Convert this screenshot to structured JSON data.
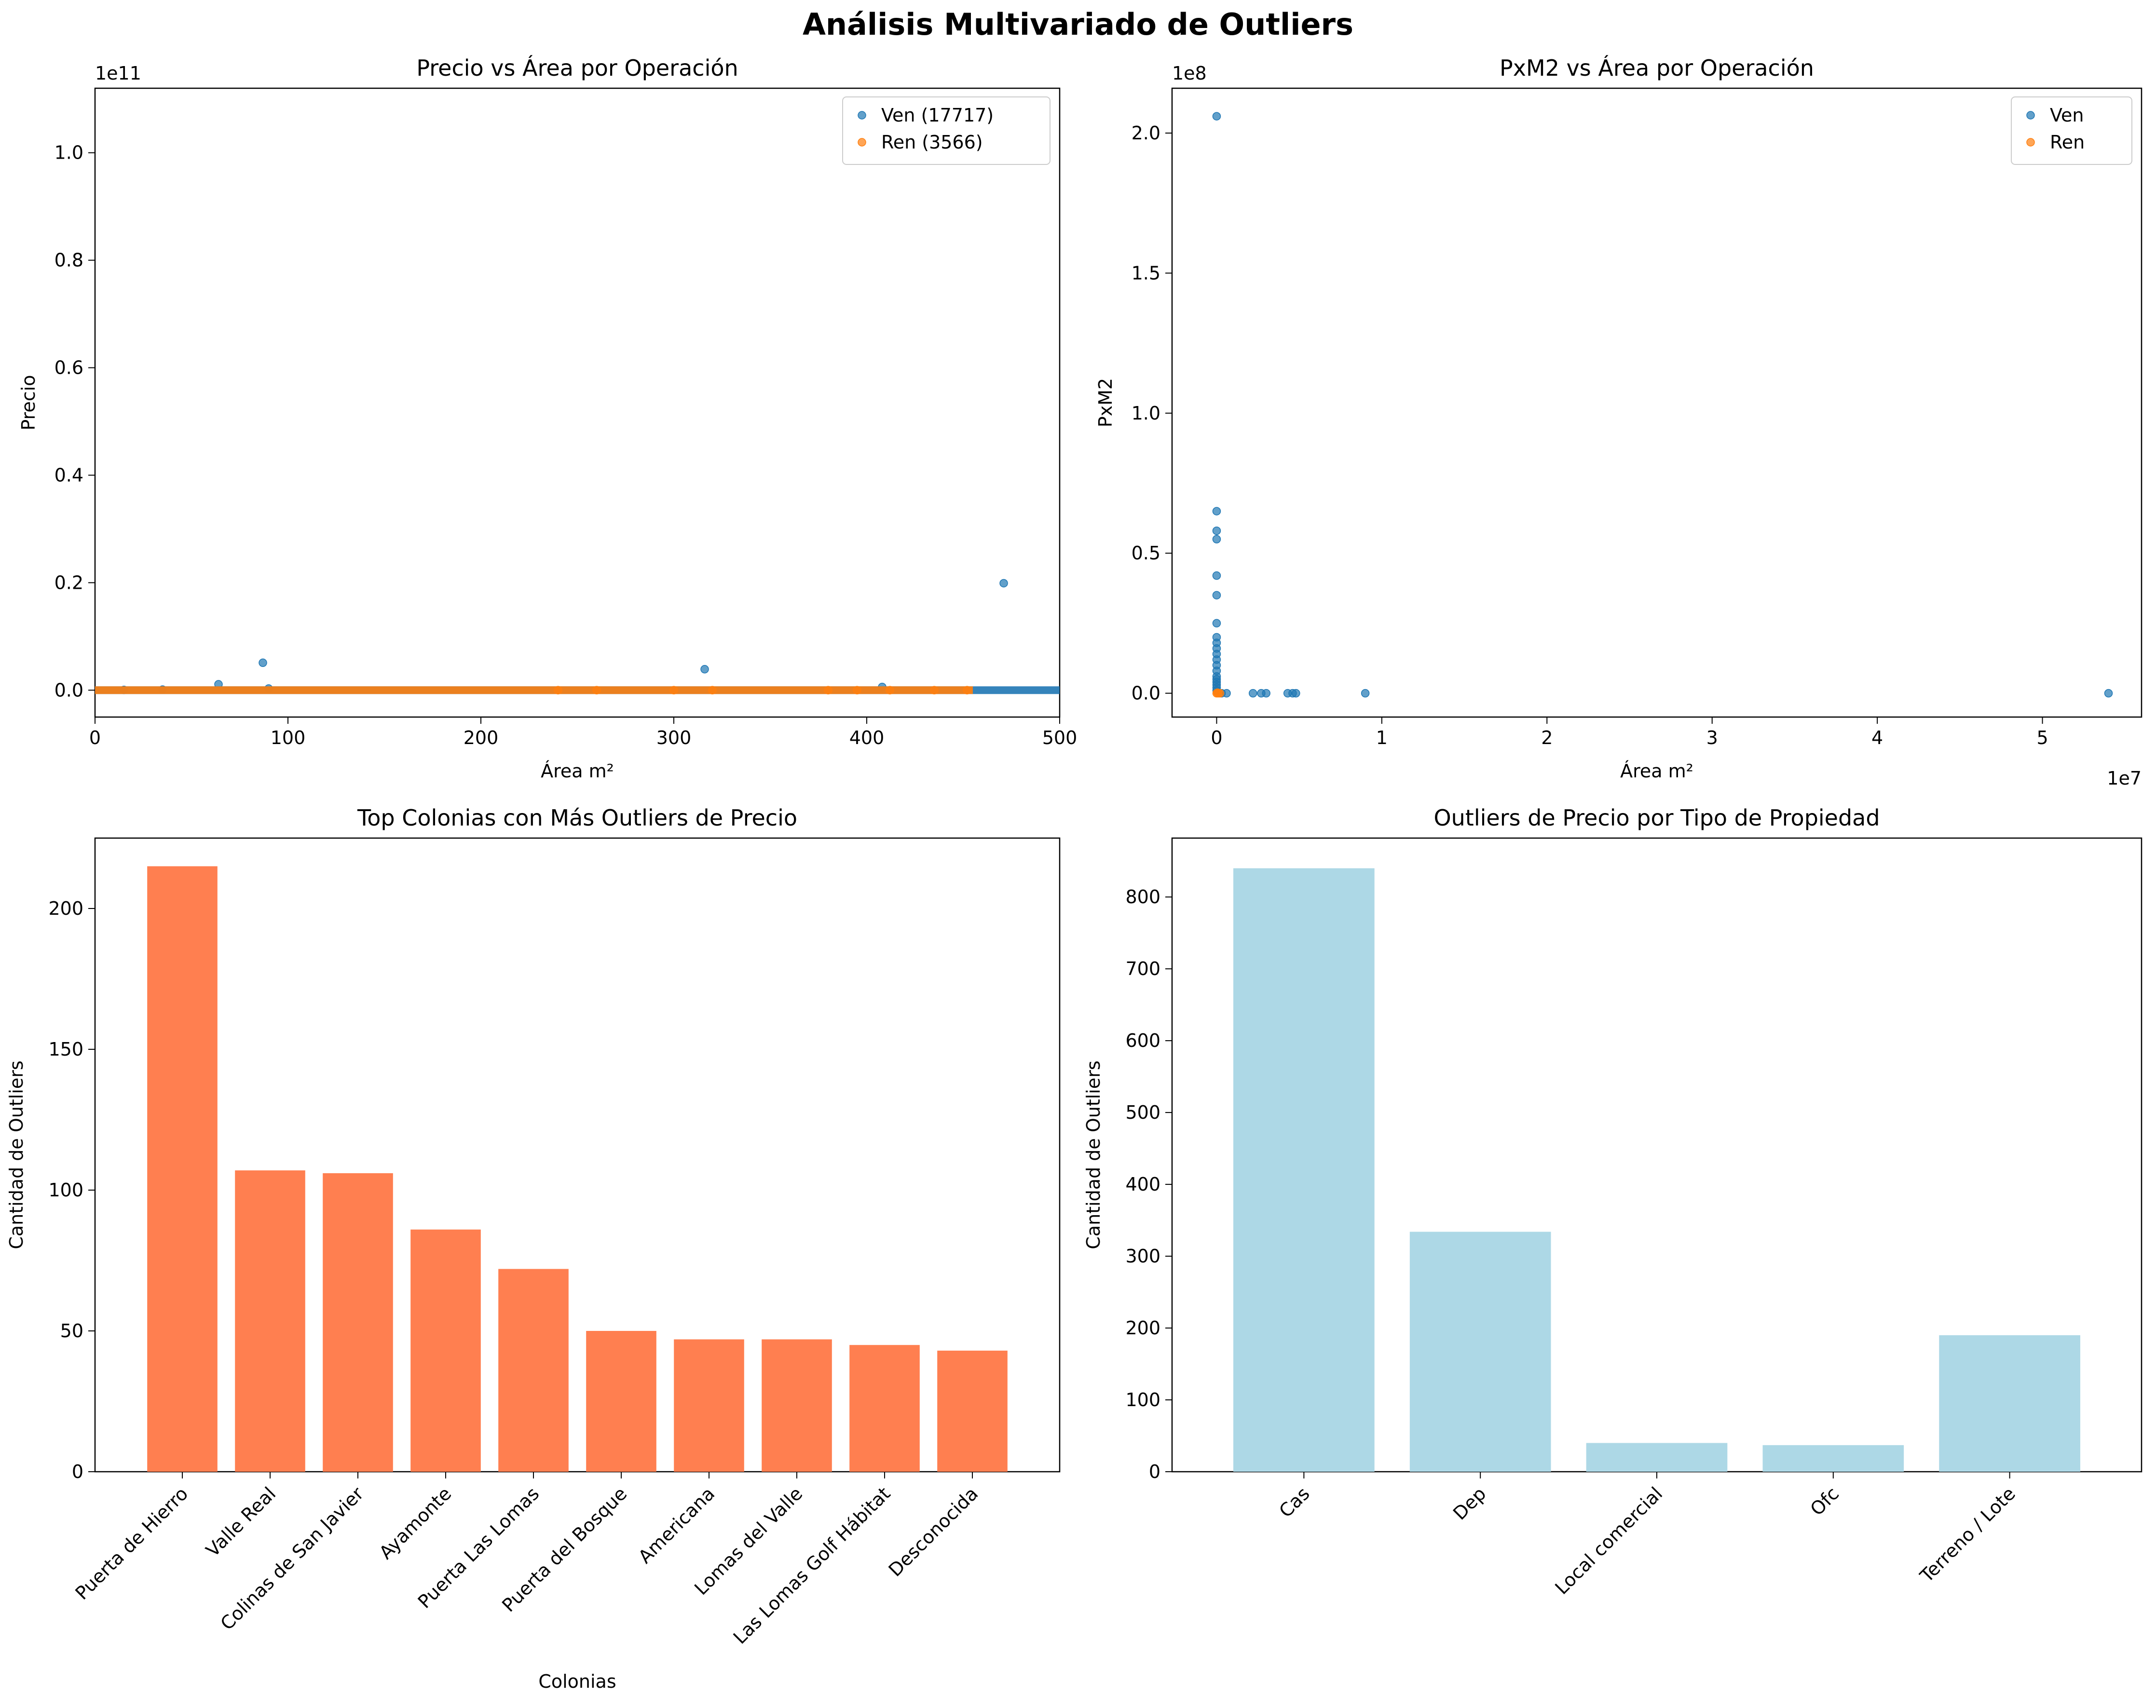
{
  "figure": {
    "title": "Análisis Multivariado de Outliers"
  },
  "chart_data": [
    {
      "type": "scatter",
      "title": "Precio vs Área por Operación",
      "xlabel": "Área m²",
      "ylabel": "Precio",
      "y_offset_text": "1e11",
      "xlim": [
        0,
        500
      ],
      "ylim": [
        -0.05,
        1.12
      ],
      "xticks": [
        0,
        100,
        200,
        300,
        400,
        500
      ],
      "xtick_labels": [
        "0",
        "100",
        "200",
        "300",
        "400",
        "500"
      ],
      "yticks": [
        0.0,
        0.2,
        0.4,
        0.6,
        0.8,
        1.0
      ],
      "ytick_labels": [
        "0.0",
        "0.2",
        "0.4",
        "0.6",
        "0.8",
        "1.0"
      ],
      "legend_position": "top-right",
      "series": [
        {
          "name": "Ven (17717)",
          "color": "#1f77b4",
          "band": [
            0,
            500
          ],
          "points": [
            [
              64,
              0.011
            ],
            [
              87,
              0.051
            ],
            [
              316,
              0.039
            ],
            [
              471,
              0.199
            ],
            [
              408,
              0.006
            ],
            [
              90,
              0.003
            ],
            [
              35,
              0.001
            ],
            [
              15,
              0.0005
            ]
          ]
        },
        {
          "name": "Ren (3566)",
          "color": "#ff7f0e",
          "band": [
            0,
            455
          ],
          "points": [
            [
              380,
              0.0
            ],
            [
              395,
              0.0
            ],
            [
              412,
              0.0
            ],
            [
              435,
              0.0
            ],
            [
              452,
              0.0
            ],
            [
              320,
              0.0
            ],
            [
              300,
              0.0
            ],
            [
              260,
              0.0
            ],
            [
              240,
              0.0
            ]
          ]
        }
      ]
    },
    {
      "type": "scatter",
      "title": "PxM2 vs Área por Operación",
      "xlabel": "Área m²",
      "ylabel": "PxM2",
      "x_offset_text": "1e7",
      "y_offset_text": "1e8",
      "xlim": [
        -0.27,
        5.6
      ],
      "ylim": [
        -0.085,
        2.16
      ],
      "xticks": [
        0,
        1,
        2,
        3,
        4,
        5
      ],
      "xtick_labels": [
        "0",
        "1",
        "2",
        "3",
        "4",
        "5"
      ],
      "yticks": [
        0.0,
        0.5,
        1.0,
        1.5,
        2.0
      ],
      "ytick_labels": [
        "0.0",
        "0.5",
        "1.0",
        "1.5",
        "2.0"
      ],
      "legend_position": "top-right",
      "series": [
        {
          "name": "Ven",
          "color": "#1f77b4",
          "points": [
            [
              0,
              2.06
            ],
            [
              0,
              0.65
            ],
            [
              0,
              0.58
            ],
            [
              0,
              0.55
            ],
            [
              0,
              0.42
            ],
            [
              0,
              0.35
            ],
            [
              0,
              0.25
            ],
            [
              0,
              0.2
            ],
            [
              0,
              0.18
            ],
            [
              0,
              0.16
            ],
            [
              0,
              0.14
            ],
            [
              0,
              0.12
            ],
            [
              0,
              0.1
            ],
            [
              0,
              0.08
            ],
            [
              0,
              0.06
            ],
            [
              0,
              0.05
            ],
            [
              0,
              0.04
            ],
            [
              0,
              0.03
            ],
            [
              0,
              0.02
            ],
            [
              0,
              0.01
            ],
            [
              0.03,
              0.0
            ],
            [
              0.06,
              0.0
            ],
            [
              0.22,
              0.0
            ],
            [
              0.27,
              0.0
            ],
            [
              0.3,
              0.0
            ],
            [
              0.43,
              0.0
            ],
            [
              0.46,
              0.0
            ],
            [
              0.48,
              0.0
            ],
            [
              0.9,
              0.0
            ],
            [
              5.4,
              0.0
            ]
          ]
        },
        {
          "name": "Ren",
          "color": "#ff7f0e",
          "points": [
            [
              0,
              0.0
            ],
            [
              0.01,
              0.0
            ],
            [
              0.02,
              0.0
            ],
            [
              0.005,
              0.002
            ]
          ]
        }
      ]
    },
    {
      "type": "bar",
      "title": "Top Colonias con Más Outliers de Precio",
      "xlabel": "Colonias",
      "ylabel": "Cantidad de Outliers",
      "ylim": [
        0,
        225
      ],
      "yticks": [
        0,
        50,
        100,
        150,
        200
      ],
      "color": "#ff7f50",
      "categories": [
        "Puerta de Hierro",
        "Valle Real",
        "Colinas de San Javier",
        "Ayamonte",
        "Puerta Las Lomas",
        "Puerta del Bosque",
        "Americana",
        "Lomas del Valle",
        "Las Lomas Golf Hábitat",
        "Desconocida"
      ],
      "values": [
        215,
        107,
        106,
        86,
        72,
        50,
        47,
        47,
        45,
        43
      ]
    },
    {
      "type": "bar",
      "title": "Outliers de Precio por Tipo de Propiedad",
      "xlabel": "",
      "ylabel": "Cantidad de Outliers",
      "ylim": [
        0,
        882
      ],
      "yticks": [
        0,
        100,
        200,
        300,
        400,
        500,
        600,
        700,
        800
      ],
      "color": "#add8e6",
      "categories": [
        "Cas",
        "Dep",
        "Local comercial",
        "Ofc",
        "Terreno / Lote"
      ],
      "values": [
        840,
        334,
        40,
        37,
        190
      ]
    }
  ]
}
